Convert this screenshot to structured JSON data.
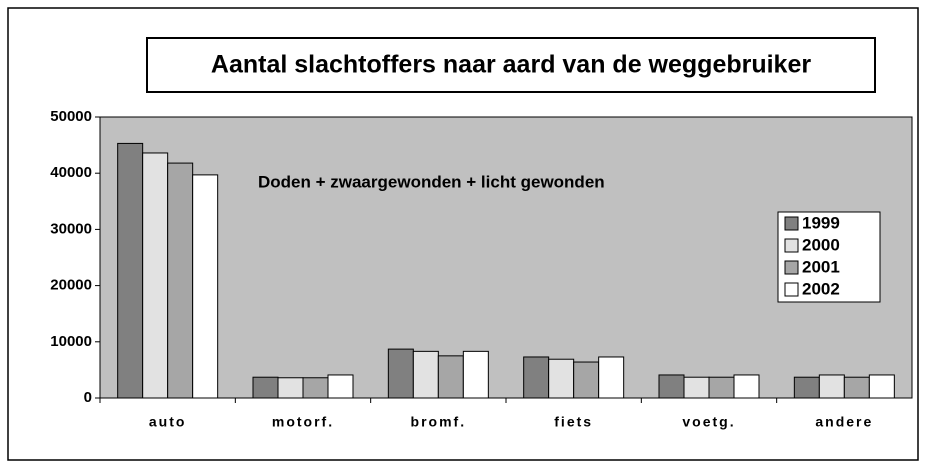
{
  "chart_data": {
    "type": "bar",
    "title": "Aantal slachtoffers naar aard van de weggebruiker",
    "annotation": "Doden + zwaargewonden + licht gewonden",
    "categories": [
      "auto",
      "motorf.",
      "bromf.",
      "fiets",
      "voetg.",
      "andere"
    ],
    "series": [
      {
        "name": "1999",
        "color": "#808080",
        "values": [
          45300,
          3700,
          8700,
          7300,
          4100,
          3700
        ]
      },
      {
        "name": "2000",
        "color": "#e2e2e2",
        "values": [
          43600,
          3600,
          8300,
          6900,
          3700,
          4100
        ]
      },
      {
        "name": "2001",
        "color": "#a6a6a6",
        "values": [
          41800,
          3600,
          7500,
          6400,
          3700,
          3700
        ]
      },
      {
        "name": "2002",
        "color": "#ffffff",
        "values": [
          39700,
          4100,
          8300,
          7300,
          4100,
          4100
        ]
      }
    ],
    "ylim": [
      0,
      50000
    ],
    "yticks": [
      0,
      10000,
      20000,
      30000,
      40000,
      50000
    ],
    "grid": false,
    "plot_background": "#c0c0c0",
    "legend": "right"
  }
}
